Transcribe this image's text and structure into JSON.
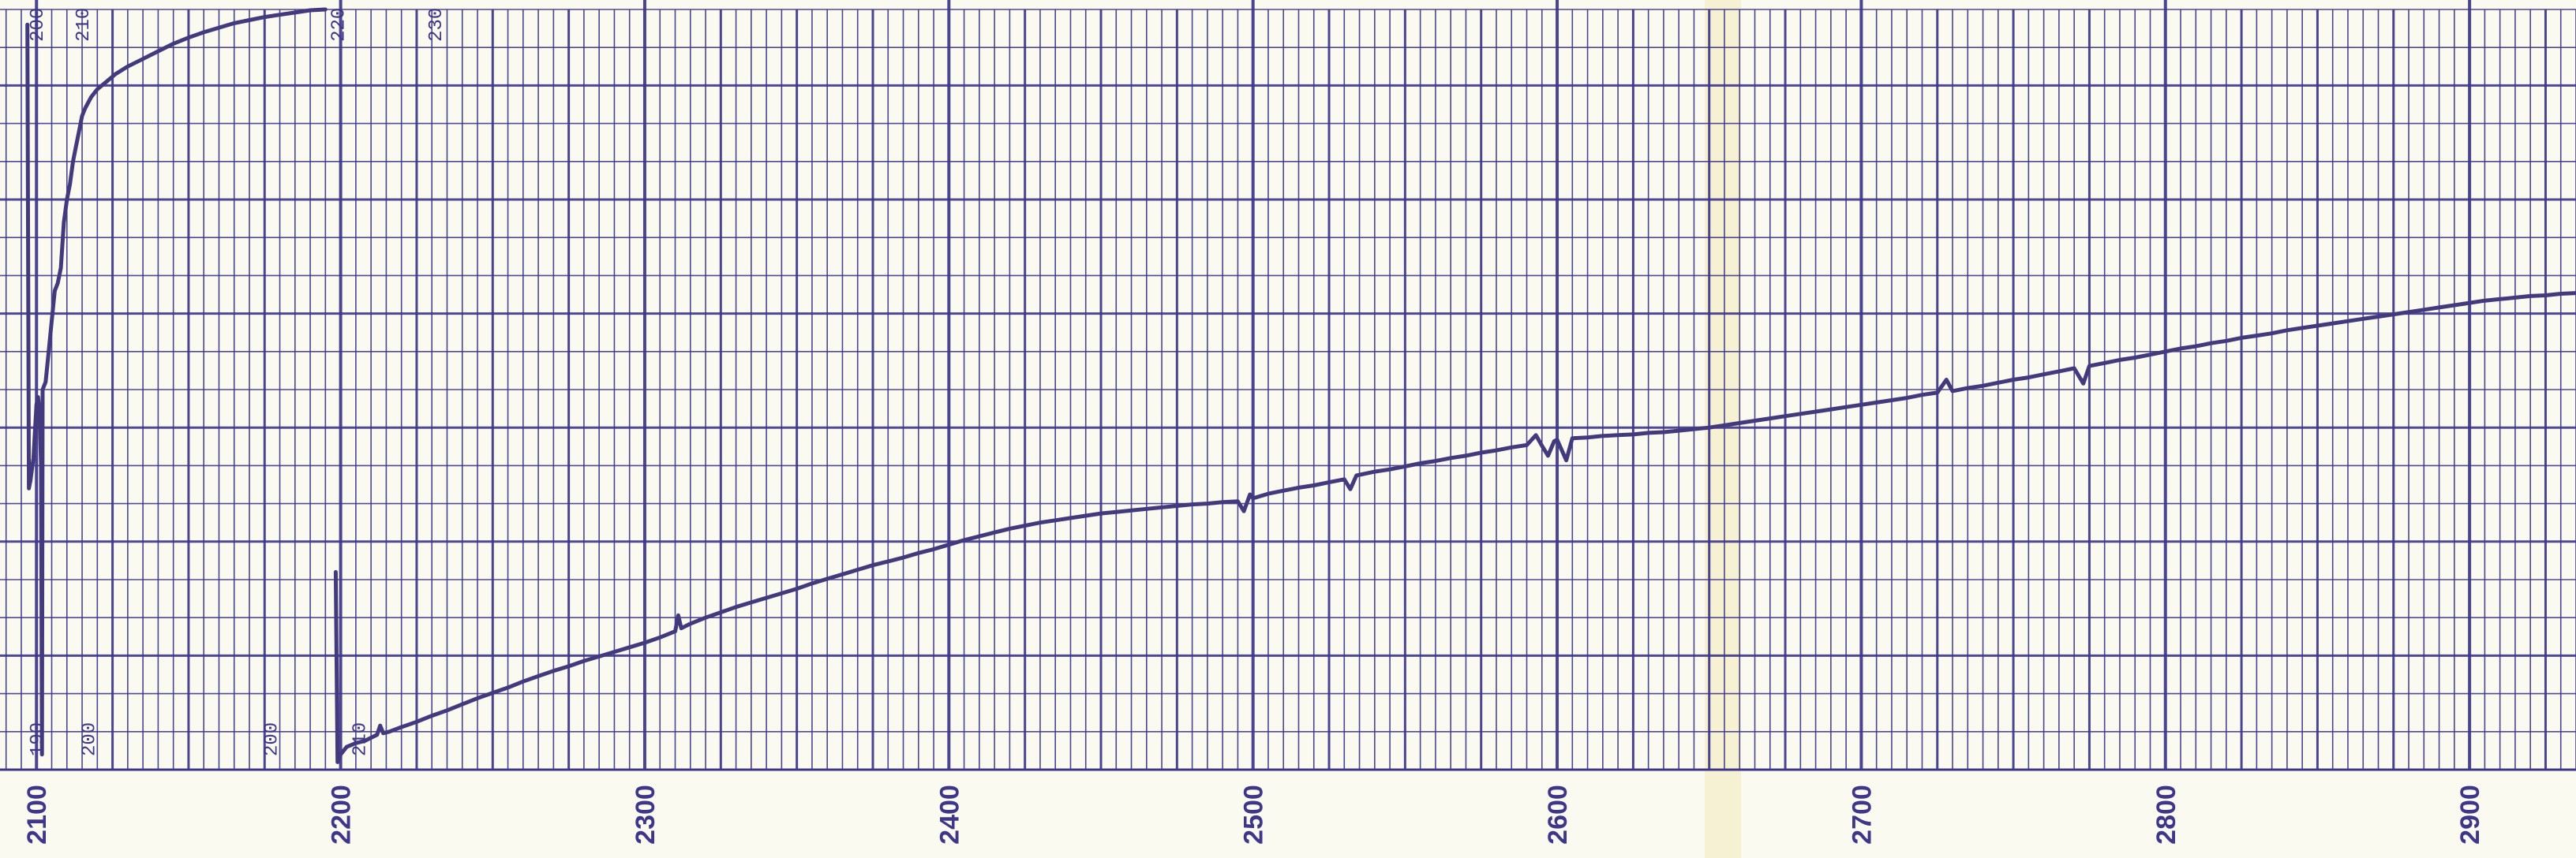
{
  "chart_data": {
    "type": "line",
    "title": "",
    "xlabel": "",
    "ylabel": "",
    "xlim": [
      2088,
      2935
    ],
    "ylim": [
      0,
      100
    ],
    "grid": true,
    "colors": {
      "paper": "#fbfaf1",
      "grid": "#3d3689",
      "trace": "#433a7e"
    },
    "x_ticks": [
      "2100",
      "2200",
      "2300",
      "2400",
      "2500",
      "2600",
      "2700",
      "2800",
      "2900"
    ],
    "annotations": [
      {
        "text": "200",
        "x": 2102,
        "y": 98
      },
      {
        "text": "210",
        "x": 2117,
        "y": 98
      },
      {
        "text": "220",
        "x": 2201,
        "y": 98
      },
      {
        "text": "230",
        "x": 2233,
        "y": 98
      },
      {
        "text": "190",
        "x": 2102,
        "y": 4
      },
      {
        "text": "200",
        "x": 2119,
        "y": 4
      },
      {
        "text": "200",
        "x": 2179,
        "y": 4
      },
      {
        "text": "210",
        "x": 2208,
        "y": 4
      }
    ],
    "series": [
      {
        "values": [
          [
            2097,
            98
          ],
          [
            2097.5,
            37
          ],
          [
            2098,
            38
          ],
          [
            2099,
            41
          ],
          [
            2100,
            48
          ],
          [
            2100.5,
            49
          ],
          [
            2101,
            47
          ],
          [
            2101.5,
            40
          ],
          [
            2101.8,
            2
          ],
          [
            2102,
            50
          ],
          [
            2103,
            51
          ],
          [
            2104,
            55
          ],
          [
            2105,
            59
          ],
          [
            2106,
            63
          ],
          [
            2107,
            64
          ],
          [
            2108,
            66
          ],
          [
            2109,
            72
          ],
          [
            2110,
            75
          ],
          [
            2111,
            77
          ],
          [
            2112,
            80
          ],
          [
            2113,
            82
          ],
          [
            2114,
            84
          ],
          [
            2115,
            86
          ],
          [
            2116,
            87
          ],
          [
            2118,
            88.5
          ],
          [
            2120,
            89.5
          ],
          [
            2123,
            90.5
          ],
          [
            2126,
            91.5
          ],
          [
            2130,
            92.5
          ],
          [
            2135,
            93.5
          ],
          [
            2140,
            94.5
          ],
          [
            2145,
            95.5
          ],
          [
            2150,
            96.3
          ],
          [
            2155,
            97
          ],
          [
            2160,
            97.6
          ],
          [
            2165,
            98.2
          ],
          [
            2170,
            98.6
          ],
          [
            2175,
            99
          ],
          [
            2180,
            99.3
          ],
          [
            2185,
            99.6
          ],
          [
            2190,
            99.9
          ],
          [
            2195,
            100
          ]
        ]
      },
      {
        "values": [
          [
            2198.4,
            26
          ],
          [
            2199,
            1
          ],
          [
            2200,
            2
          ],
          [
            2202,
            3
          ],
          [
            2205,
            3.5
          ],
          [
            2208,
            3.8
          ],
          [
            2210,
            4.2
          ],
          [
            2212,
            4.6
          ],
          [
            2213,
            5.8
          ],
          [
            2214,
            4.8
          ],
          [
            2216,
            5
          ],
          [
            2220,
            5.6
          ],
          [
            2225,
            6.3
          ],
          [
            2230,
            7.1
          ],
          [
            2235,
            7.8
          ],
          [
            2240,
            8.6
          ],
          [
            2245,
            9.4
          ],
          [
            2250,
            10.1
          ],
          [
            2255,
            10.8
          ],
          [
            2260,
            11.6
          ],
          [
            2265,
            12.3
          ],
          [
            2270,
            13
          ],
          [
            2275,
            13.6
          ],
          [
            2280,
            14.3
          ],
          [
            2285,
            14.9
          ],
          [
            2290,
            15.5
          ],
          [
            2295,
            16.1
          ],
          [
            2300,
            16.7
          ],
          [
            2305,
            17.4
          ],
          [
            2310,
            18.2
          ],
          [
            2311,
            20.3
          ],
          [
            2312,
            18.6
          ],
          [
            2315,
            19.2
          ],
          [
            2320,
            20
          ],
          [
            2325,
            20.7
          ],
          [
            2330,
            21.4
          ],
          [
            2335,
            22
          ],
          [
            2340,
            22.6
          ],
          [
            2345,
            23.2
          ],
          [
            2350,
            23.8
          ],
          [
            2355,
            24.5
          ],
          [
            2360,
            25.1
          ],
          [
            2365,
            25.7
          ],
          [
            2370,
            26.3
          ],
          [
            2375,
            26.9
          ],
          [
            2380,
            27.4
          ],
          [
            2385,
            27.9
          ],
          [
            2390,
            28.5
          ],
          [
            2395,
            29
          ],
          [
            2400,
            29.6
          ],
          [
            2405,
            30.2
          ],
          [
            2410,
            30.7
          ],
          [
            2415,
            31.2
          ],
          [
            2420,
            31.7
          ],
          [
            2425,
            32.1
          ],
          [
            2430,
            32.5
          ],
          [
            2435,
            32.8
          ],
          [
            2440,
            33.1
          ],
          [
            2445,
            33.4
          ],
          [
            2450,
            33.7
          ],
          [
            2455,
            33.9
          ],
          [
            2460,
            34.1
          ],
          [
            2465,
            34.3
          ],
          [
            2470,
            34.5
          ],
          [
            2475,
            34.7
          ],
          [
            2480,
            34.9
          ],
          [
            2485,
            35
          ],
          [
            2490,
            35.2
          ],
          [
            2495,
            35.3
          ],
          [
            2497,
            34
          ],
          [
            2499,
            36.2
          ],
          [
            2500,
            35.7
          ],
          [
            2505,
            36.3
          ],
          [
            2510,
            36.7
          ],
          [
            2515,
            37.1
          ],
          [
            2520,
            37.4
          ],
          [
            2525,
            37.8
          ],
          [
            2530,
            38.2
          ],
          [
            2532,
            36.9
          ],
          [
            2534,
            38.7
          ],
          [
            2540,
            39.2
          ],
          [
            2545,
            39.5
          ],
          [
            2550,
            39.9
          ],
          [
            2555,
            40.3
          ],
          [
            2560,
            40.6
          ],
          [
            2565,
            41
          ],
          [
            2570,
            41.3
          ],
          [
            2575,
            41.7
          ],
          [
            2580,
            42
          ],
          [
            2585,
            42.4
          ],
          [
            2590,
            42.7
          ],
          [
            2593,
            44
          ],
          [
            2595,
            42.6
          ],
          [
            2597,
            41.3
          ],
          [
            2599,
            43.2
          ],
          [
            2600,
            43.4
          ],
          [
            2603,
            40.7
          ],
          [
            2605,
            43.6
          ],
          [
            2610,
            43.7
          ],
          [
            2615,
            43.9
          ],
          [
            2620,
            44
          ],
          [
            2625,
            44.1
          ],
          [
            2630,
            44.3
          ],
          [
            2635,
            44.4
          ],
          [
            2640,
            44.6
          ],
          [
            2645,
            44.8
          ],
          [
            2650,
            45
          ],
          [
            2655,
            45.3
          ],
          [
            2660,
            45.6
          ],
          [
            2665,
            45.9
          ],
          [
            2670,
            46.2
          ],
          [
            2675,
            46.5
          ],
          [
            2680,
            46.8
          ],
          [
            2685,
            47.1
          ],
          [
            2690,
            47.4
          ],
          [
            2695,
            47.7
          ],
          [
            2700,
            48
          ],
          [
            2705,
            48.3
          ],
          [
            2710,
            48.6
          ],
          [
            2715,
            48.9
          ],
          [
            2720,
            49.3
          ],
          [
            2725,
            49.6
          ],
          [
            2728,
            51.3
          ],
          [
            2730,
            49.8
          ],
          [
            2735,
            50.2
          ],
          [
            2740,
            50.5
          ],
          [
            2745,
            50.9
          ],
          [
            2750,
            51.3
          ],
          [
            2755,
            51.6
          ],
          [
            2760,
            52
          ],
          [
            2765,
            52.4
          ],
          [
            2770,
            52.8
          ],
          [
            2773,
            50.8
          ],
          [
            2775,
            53.1
          ],
          [
            2780,
            53.5
          ],
          [
            2785,
            53.9
          ],
          [
            2790,
            54.2
          ],
          [
            2795,
            54.6
          ],
          [
            2800,
            55
          ],
          [
            2805,
            55.4
          ],
          [
            2810,
            55.7
          ],
          [
            2815,
            56.1
          ],
          [
            2820,
            56.4
          ],
          [
            2825,
            56.8
          ],
          [
            2830,
            57.1
          ],
          [
            2835,
            57.4
          ],
          [
            2840,
            57.8
          ],
          [
            2845,
            58.1
          ],
          [
            2850,
            58.4
          ],
          [
            2855,
            58.7
          ],
          [
            2860,
            59
          ],
          [
            2865,
            59.3
          ],
          [
            2870,
            59.6
          ],
          [
            2875,
            59.9
          ],
          [
            2880,
            60.2
          ],
          [
            2885,
            60.5
          ],
          [
            2890,
            60.8
          ],
          [
            2895,
            61.1
          ],
          [
            2900,
            61.4
          ],
          [
            2905,
            61.7
          ],
          [
            2910,
            61.9
          ],
          [
            2915,
            62.1
          ],
          [
            2920,
            62.3
          ],
          [
            2925,
            62.4
          ],
          [
            2930,
            62.6
          ],
          [
            2935,
            62.7
          ]
        ]
      }
    ]
  }
}
